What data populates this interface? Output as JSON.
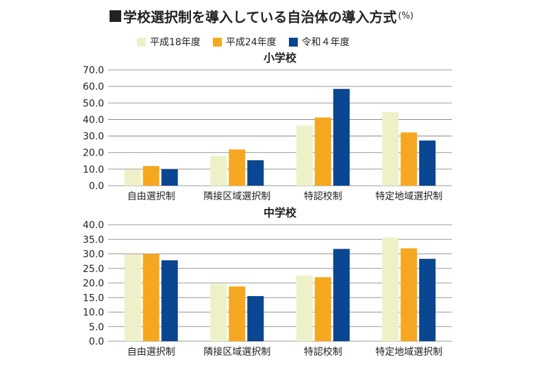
{
  "title": "学校選択制を導入している自治体の導入方式",
  "title_unit": "(%)",
  "colors": {
    "h18": "#eef1c8",
    "h24": "#f5a81f",
    "r4": "#0a4691"
  },
  "legend": [
    "平成18年度",
    "平成24年度",
    "令和４年度"
  ],
  "chart_data": [
    {
      "type": "bar",
      "title": "小学校",
      "categories": [
        "自由選択制",
        "隣接区域選択制",
        "特認校制",
        "特定地域選択制"
      ],
      "series": [
        {
          "name": "平成18年度",
          "values": [
            9.8,
            18.0,
            36.3,
            44.5
          ]
        },
        {
          "name": "平成24年度",
          "values": [
            11.9,
            21.9,
            41.2,
            32.2
          ]
        },
        {
          "name": "令和４年度",
          "values": [
            10.0,
            15.4,
            58.5,
            27.3
          ]
        }
      ],
      "ylim": [
        0,
        70
      ],
      "yticks": [
        "0.0",
        "10.0",
        "20.0",
        "30.0",
        "40.0",
        "50.0",
        "60.0",
        "70.0"
      ],
      "grid": true
    },
    {
      "type": "bar",
      "title": "中学校",
      "categories": [
        "自由選択制",
        "隣接区域選択制",
        "特認校制",
        "特定地域選択制"
      ],
      "series": [
        {
          "name": "平成18年度",
          "values": [
            29.9,
            19.6,
            22.5,
            35.6
          ]
        },
        {
          "name": "平成24年度",
          "values": [
            30.0,
            18.8,
            22.0,
            31.9
          ]
        },
        {
          "name": "令和４年度",
          "values": [
            27.8,
            15.5,
            31.7,
            28.3
          ]
        }
      ],
      "ylim": [
        0,
        40
      ],
      "yticks": [
        "0.0",
        "5.0",
        "10.0",
        "15.0",
        "20.0",
        "25.0",
        "30.0",
        "35.0",
        "40.0"
      ],
      "grid": true
    }
  ]
}
